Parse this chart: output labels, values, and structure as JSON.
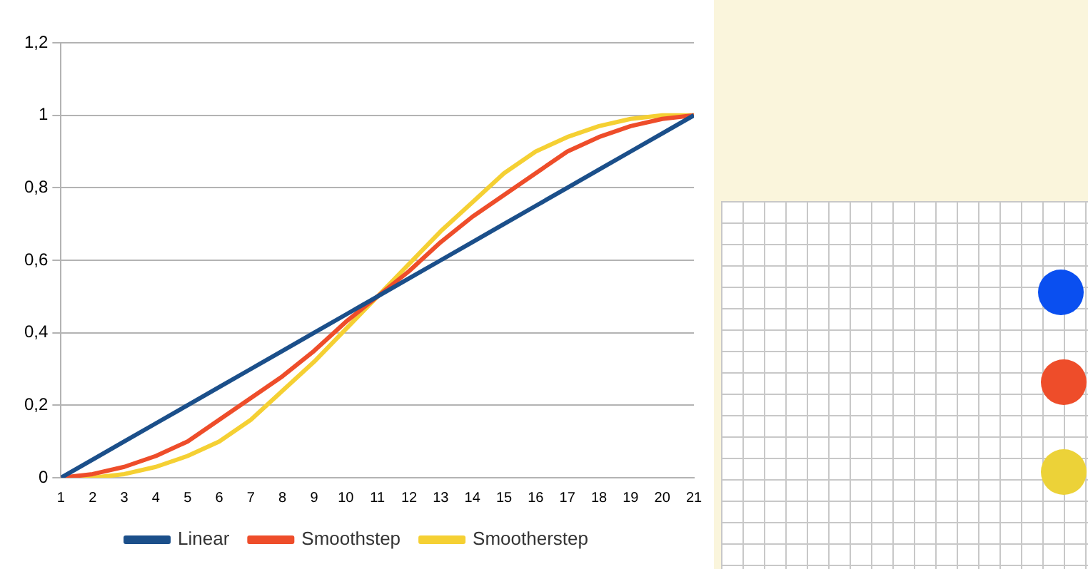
{
  "chart_data": {
    "type": "line",
    "x": [
      1,
      2,
      3,
      4,
      5,
      6,
      7,
      8,
      9,
      10,
      11,
      12,
      13,
      14,
      15,
      16,
      17,
      18,
      19,
      20,
      21
    ],
    "series": [
      {
        "name": "Linear",
        "color": "#1b4f8a",
        "values": [
          0,
          0.05,
          0.1,
          0.15,
          0.2,
          0.25,
          0.3,
          0.35,
          0.4,
          0.45,
          0.5,
          0.55,
          0.6,
          0.65,
          0.7,
          0.75,
          0.8,
          0.85,
          0.9,
          0.95,
          1
        ]
      },
      {
        "name": "Smoothstep",
        "color": "#ee4d2a",
        "values": [
          0,
          0.01,
          0.03,
          0.06,
          0.1,
          0.16,
          0.22,
          0.28,
          0.35,
          0.43,
          0.5,
          0.57,
          0.65,
          0.72,
          0.78,
          0.84,
          0.9,
          0.94,
          0.97,
          0.99,
          1
        ]
      },
      {
        "name": "Smootherstep",
        "color": "#f5d033",
        "values": [
          0,
          0,
          0.01,
          0.03,
          0.06,
          0.1,
          0.16,
          0.24,
          0.32,
          0.41,
          0.5,
          0.59,
          0.68,
          0.76,
          0.84,
          0.9,
          0.94,
          0.97,
          0.99,
          1,
          1
        ]
      }
    ],
    "xlim": [
      1,
      21
    ],
    "xticks": [
      1,
      2,
      3,
      4,
      5,
      6,
      7,
      8,
      9,
      10,
      11,
      12,
      13,
      14,
      15,
      16,
      17,
      18,
      19,
      20,
      21
    ],
    "ylim": [
      0,
      1.2
    ],
    "yticks": [
      0,
      {
        "value": 0.2,
        "label": "0,2"
      },
      {
        "value": 0.4,
        "label": "0,4"
      },
      {
        "value": 0.6,
        "label": "0,6"
      },
      {
        "value": 0.8,
        "label": "0,8"
      },
      1,
      {
        "value": 1.2,
        "label": "1,2"
      }
    ],
    "grid": "y",
    "legend": "bottom",
    "marker": "none",
    "line_style": "solid"
  }
}
